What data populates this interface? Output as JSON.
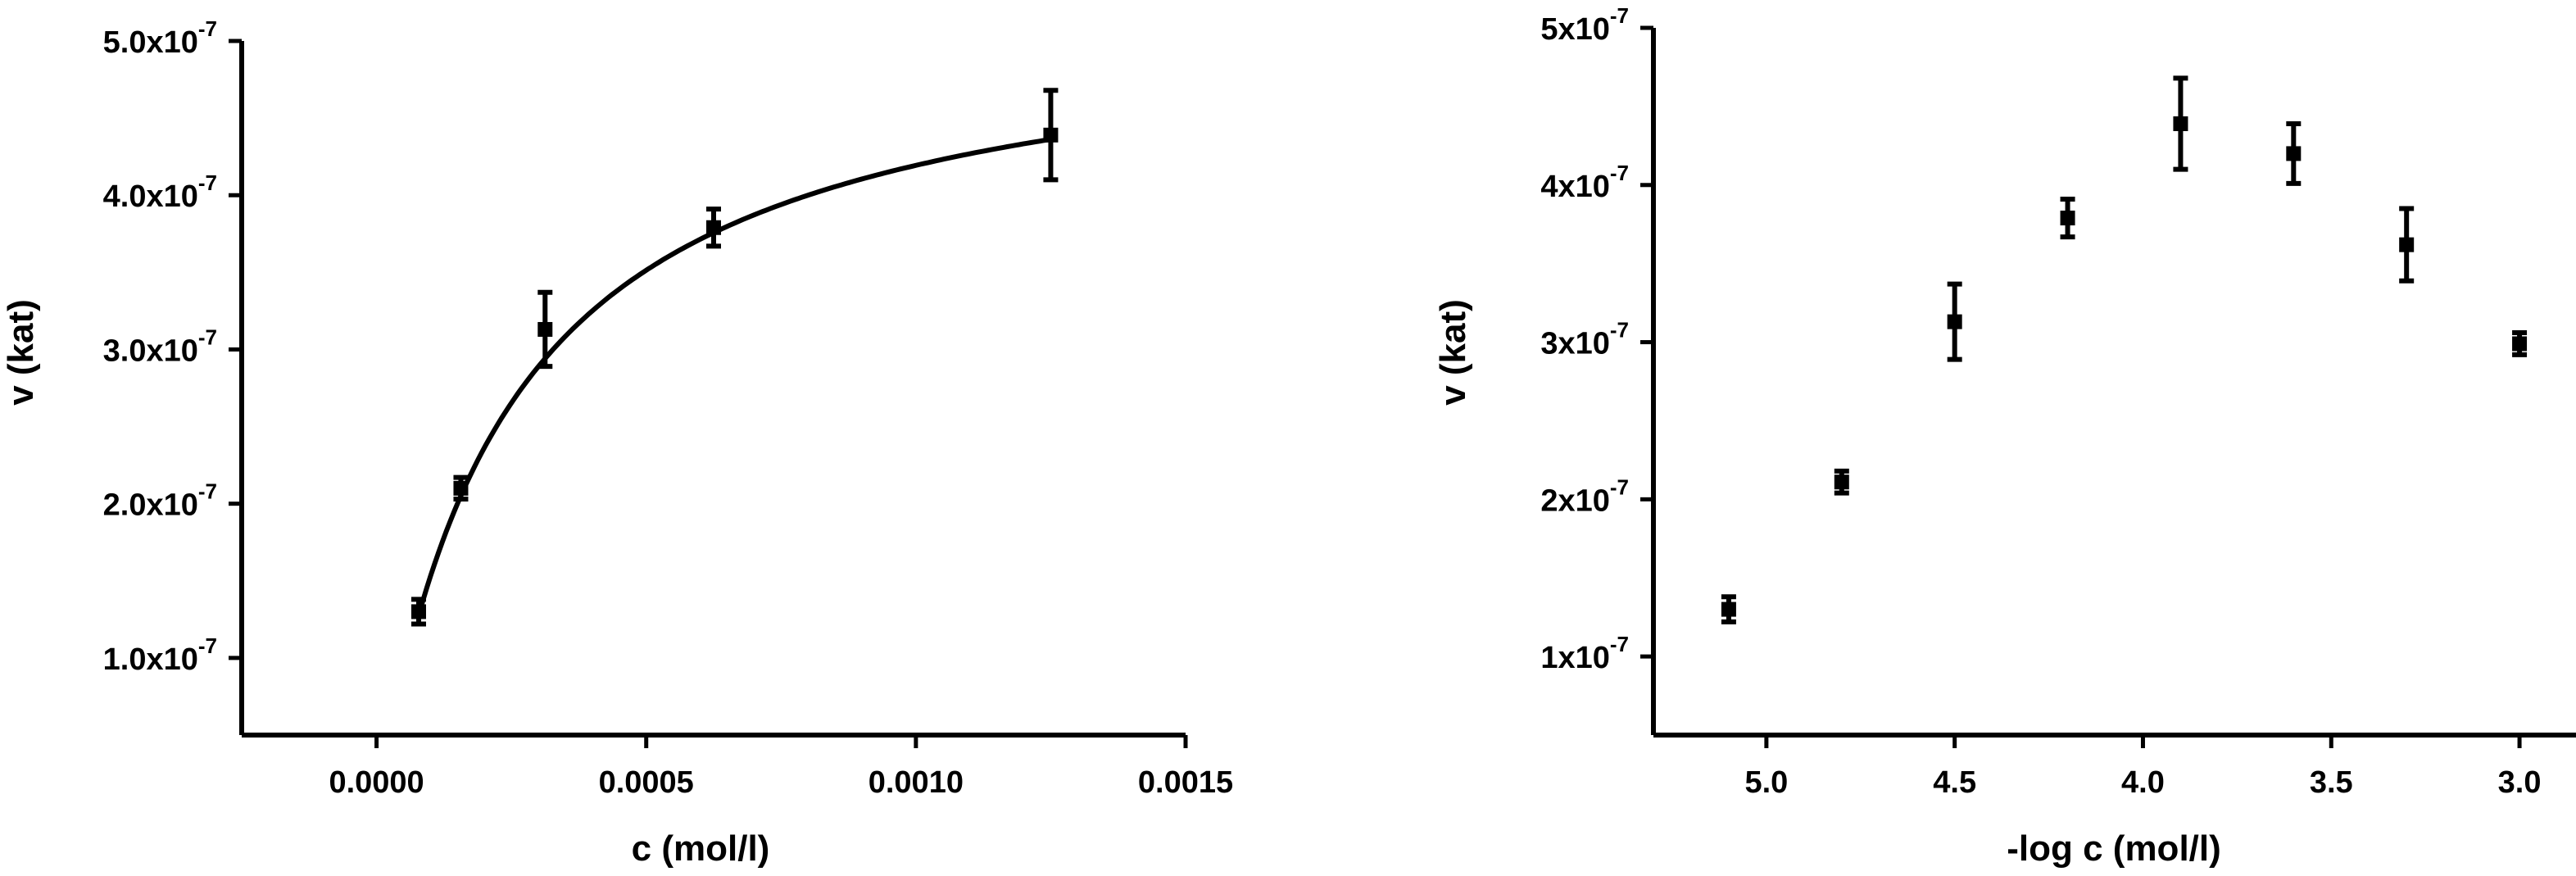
{
  "chart_data": [
    {
      "type": "scatter",
      "xlabel": "c (mol/l)",
      "ylabel": "v (kat)",
      "xlim": [
        -0.00025,
        0.0015
      ],
      "ylim": [
        5e-08,
        5e-07
      ],
      "x_ticks": [
        {
          "value": 0.0,
          "label": "0.0000"
        },
        {
          "value": 0.0005,
          "label": "0.0005"
        },
        {
          "value": 0.001,
          "label": "0.0010"
        },
        {
          "value": 0.0015,
          "label": "0.0015"
        }
      ],
      "y_ticks": [
        {
          "value": 1e-07,
          "mantissa": "1.0x10",
          "exponent": "-7"
        },
        {
          "value": 2e-07,
          "mantissa": "2.0x10",
          "exponent": "-7"
        },
        {
          "value": 3e-07,
          "mantissa": "3.0x10",
          "exponent": "-7"
        },
        {
          "value": 4e-07,
          "mantissa": "4.0x10",
          "exponent": "-7"
        },
        {
          "value": 5e-07,
          "mantissa": "5.0x10",
          "exponent": "-7"
        }
      ],
      "points": [
        {
          "x": 7.81e-05,
          "y": 1.3e-07,
          "err": 8e-09
        },
        {
          "x": 0.0001563,
          "y": 2.1e-07,
          "err": 7e-09
        },
        {
          "x": 0.0003125,
          "y": 3.13e-07,
          "err": 2.4e-08
        },
        {
          "x": 0.000625,
          "y": 3.79e-07,
          "err": 1.2e-08
        },
        {
          "x": 0.00125,
          "y": 4.39e-07,
          "err": 2.9e-08
        }
      ],
      "fit": {
        "model": "michaelis-menten",
        "vmax": 5.2e-07,
        "km": 0.00024
      },
      "grid": false
    },
    {
      "type": "scatter",
      "xlabel": "-log c (mol/l)",
      "ylabel": "v (kat)",
      "xlim": [
        5.3,
        2.85
      ],
      "ylim": [
        5e-08,
        5e-07
      ],
      "x_reversed": true,
      "x_ticks": [
        {
          "value": 5.0,
          "label": "5.0"
        },
        {
          "value": 4.5,
          "label": "4.5"
        },
        {
          "value": 4.0,
          "label": "4.0"
        },
        {
          "value": 3.5,
          "label": "3.5"
        },
        {
          "value": 3.0,
          "label": "3.0"
        }
      ],
      "y_ticks": [
        {
          "value": 1e-07,
          "mantissa": "1x10",
          "exponent": "-7"
        },
        {
          "value": 2e-07,
          "mantissa": "2x10",
          "exponent": "-7"
        },
        {
          "value": 3e-07,
          "mantissa": "3x10",
          "exponent": "-7"
        },
        {
          "value": 4e-07,
          "mantissa": "4x10",
          "exponent": "-7"
        },
        {
          "value": 5e-07,
          "mantissa": "5x10",
          "exponent": "-7"
        }
      ],
      "points": [
        {
          "x": 5.1,
          "y": 1.3e-07,
          "err": 8e-09
        },
        {
          "x": 4.8,
          "y": 2.11e-07,
          "err": 7e-09
        },
        {
          "x": 4.5,
          "y": 3.13e-07,
          "err": 2.4e-08
        },
        {
          "x": 4.2,
          "y": 3.79e-07,
          "err": 1.2e-08
        },
        {
          "x": 3.9,
          "y": 4.39e-07,
          "err": 2.9e-08
        },
        {
          "x": 3.6,
          "y": 4.2e-07,
          "err": 1.9e-08
        },
        {
          "x": 3.3,
          "y": 3.62e-07,
          "err": 2.3e-08
        },
        {
          "x": 3.0,
          "y": 2.99e-07,
          "err": 7e-09
        }
      ],
      "grid": false
    }
  ]
}
